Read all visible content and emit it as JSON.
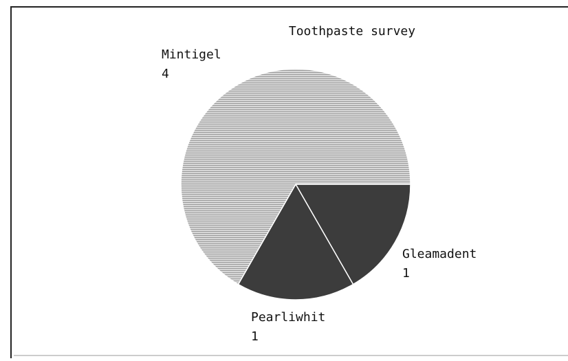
{
  "chart_data": {
    "type": "pie",
    "title": "Toothpaste survey",
    "categories": [
      "Gleamadent",
      "Pearliwhit",
      "Mintigel"
    ],
    "values": [
      1,
      1,
      4
    ],
    "colors": [
      "#3c3c3c",
      "#3c3c3c",
      "#c4c4c4"
    ]
  }
}
